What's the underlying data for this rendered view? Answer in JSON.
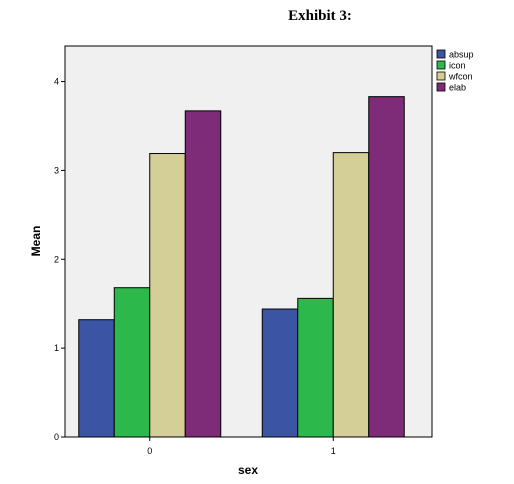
{
  "exhibit_title": "Exhibit 3:",
  "chart_data": {
    "type": "bar",
    "categories": [
      "0",
      "1"
    ],
    "series": [
      {
        "name": "absup",
        "values": [
          1.32,
          1.44
        ]
      },
      {
        "name": "icon",
        "values": [
          1.68,
          1.56
        ]
      },
      {
        "name": "wfcon",
        "values": [
          3.19,
          3.2
        ]
      },
      {
        "name": "elab",
        "values": [
          3.67,
          3.83
        ]
      }
    ],
    "colors": [
      "#3b55a4",
      "#2db84c",
      "#d4cf96",
      "#7e2b78"
    ],
    "xlabel": "sex",
    "ylabel": "Mean",
    "ylim": [
      0,
      4.4
    ],
    "yticks": [
      0,
      1,
      2,
      3,
      4
    ],
    "legend_position": "right",
    "plot_background": "#f0f0f0",
    "grid": false
  }
}
